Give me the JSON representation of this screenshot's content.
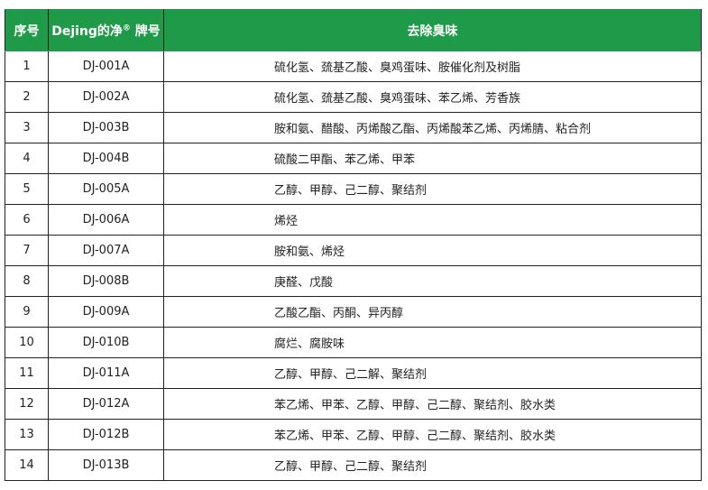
{
  "header": {
    "col_no": "序号",
    "col_brand": "Dejing的净",
    "col_brand_mark": "®",
    "col_brand_suffix": "牌号",
    "col_odor": "去除臭味"
  },
  "header_color": "#1e9a48",
  "rows": [
    {
      "no": "1",
      "code": "DJ-001A",
      "odor": "硫化氢、巯基乙酸、臭鸡蛋味、胺催化剂及树脂"
    },
    {
      "no": "2",
      "code": "DJ-002A",
      "odor": "硫化氢、巯基乙酸、臭鸡蛋味、苯乙烯、芳香族"
    },
    {
      "no": "3",
      "code": "DJ-003B",
      "odor": "胺和氨、醋酸、丙烯酸乙酯、丙烯酸苯乙烯、丙烯腈、粘合剂"
    },
    {
      "no": "4",
      "code": "DJ-004B",
      "odor": "硫酸二甲酯、苯乙烯、甲苯"
    },
    {
      "no": "5",
      "code": "DJ-005A",
      "odor": "乙醇、甲醇、己二醇、聚结剂"
    },
    {
      "no": "6",
      "code": "DJ-006A",
      "odor": "烯烃"
    },
    {
      "no": "7",
      "code": "DJ-007A",
      "odor": "胺和氨、烯烃"
    },
    {
      "no": "8",
      "code": "DJ-008B",
      "odor": "庚醛、戊酸"
    },
    {
      "no": "9",
      "code": "DJ-009A",
      "odor": "乙酸乙酯、丙酮、异丙醇"
    },
    {
      "no": "10",
      "code": "DJ-010B",
      "odor": "腐烂、腐胺味"
    },
    {
      "no": "11",
      "code": "DJ-011A",
      "odor": "乙醇、甲醇、己二解、聚结剂"
    },
    {
      "no": "12",
      "code": "DJ-012A",
      "odor": "苯乙烯、甲苯、乙醇、甲醇、己二醇、聚结剂、胶水类"
    },
    {
      "no": "13",
      "code": "DJ-012B",
      "odor": "苯乙烯、甲苯、乙醇、甲醇、己二醇、聚结剂、胶水类"
    },
    {
      "no": "14",
      "code": "DJ-013B",
      "odor": "乙醇、甲醇、己二醇、聚结剂"
    }
  ]
}
